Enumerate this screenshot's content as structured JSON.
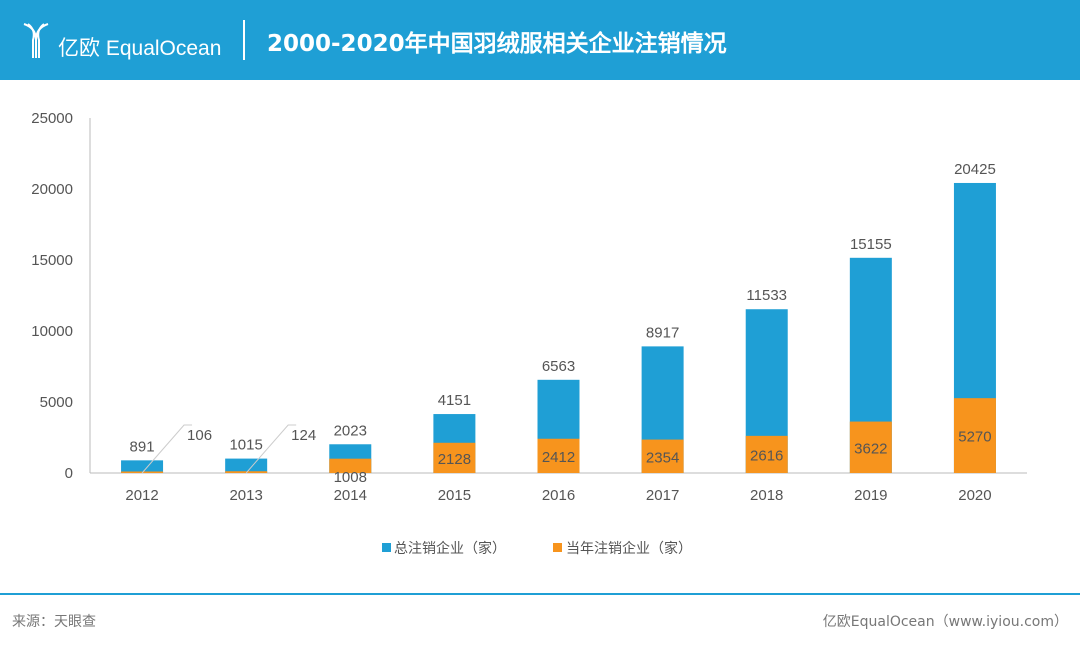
{
  "header": {
    "logo_text": "亿欧 EqualOcean",
    "title": "2000-2020年中国羽绒服相关企业注销情况"
  },
  "footer": {
    "source": "来源：天眼查",
    "credit": "亿欧EqualOcean（www.iyiou.com）"
  },
  "colors": {
    "header": "#1f9fd5",
    "total": "#1f9fd5",
    "annual": "#f7941d"
  },
  "chart_data": {
    "type": "bar",
    "categories": [
      "2012",
      "2013",
      "2014",
      "2015",
      "2016",
      "2017",
      "2018",
      "2019",
      "2020"
    ],
    "series": [
      {
        "name": "总注销企业（家）",
        "values": [
          891,
          1015,
          2023,
          4151,
          6563,
          8917,
          11533,
          15155,
          20425
        ]
      },
      {
        "name": "当年注销企业（家）",
        "values": [
          106,
          124,
          1008,
          2128,
          2412,
          2354,
          2616,
          3622,
          5270
        ]
      }
    ],
    "ylim": [
      0,
      25000
    ],
    "yticks": [
      "0",
      "5000",
      "10000",
      "15000",
      "20000",
      "25000"
    ],
    "grid": false,
    "legend": "bottom",
    "overlap": true
  }
}
